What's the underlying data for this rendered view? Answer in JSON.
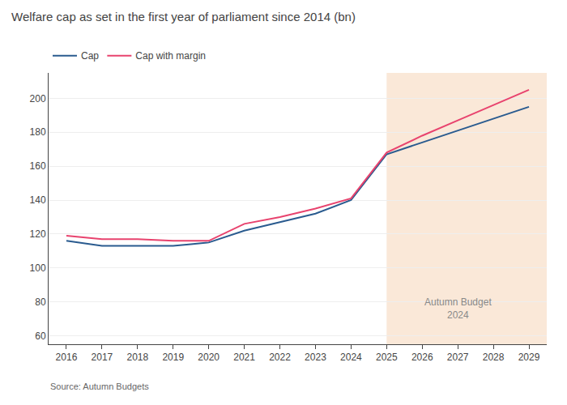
{
  "chart_data": {
    "type": "line",
    "title": "Welfare cap as set in the first year of parliament since 2014 (bn)",
    "source": "Source: Autumn Budgets",
    "x": [
      2016,
      2017,
      2018,
      2019,
      2019.5,
      2020,
      2021,
      2022,
      2023,
      2024,
      2025,
      2026,
      2027,
      2028,
      2029
    ],
    "series": [
      {
        "name": "Cap",
        "color": "#2a5b8f",
        "values": [
          116,
          113,
          113,
          113,
          114,
          115,
          122,
          127,
          132,
          140,
          167,
          174,
          181,
          188,
          195
        ]
      },
      {
        "name": "Cap with margin",
        "color": "#e8436e",
        "values": [
          119,
          117,
          117,
          116,
          116,
          116,
          126,
          130,
          135,
          141,
          168,
          178,
          187,
          196,
          205
        ]
      }
    ],
    "shaded_region": {
      "x0": 2025,
      "x1": 2029.5,
      "color": "#fae8d8"
    },
    "annotations": [
      {
        "text": "Autumn Budget\n2024",
        "x": 2027,
        "y": 68
      }
    ],
    "xlim": [
      2015.5,
      2029.5
    ],
    "xticks": [
      2016,
      2017,
      2018,
      2019,
      2020,
      2021,
      2022,
      2023,
      2024,
      2025,
      2026,
      2027,
      2028,
      2029
    ],
    "ylim": [
      55,
      215
    ],
    "yticks": [
      60,
      80,
      100,
      120,
      140,
      160,
      180,
      200
    ],
    "grid": "y",
    "legend": "top"
  }
}
